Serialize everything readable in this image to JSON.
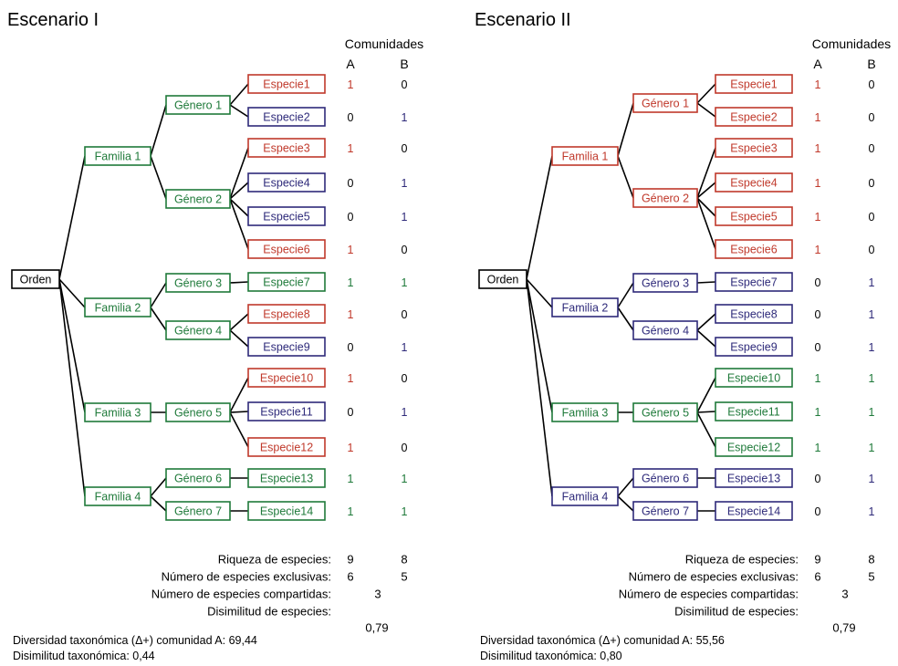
{
  "colors": {
    "red": "#c0392b",
    "blue": "#2e2a7a",
    "green": "#1f7a3a",
    "black": "#000000"
  },
  "header": {
    "comunidades": "Comunidades",
    "col_a": "A",
    "col_b": "B"
  },
  "stat_labels": {
    "riqueza": "Riqueza de especies:",
    "exclusivas": "Número de especies exclusivas:",
    "compartidas": "Número de especies compartidas:",
    "disimilitud": "Disimilitud de especies:"
  },
  "scenarios": [
    {
      "title": "Escenario I",
      "root": {
        "label": "Orden",
        "color": "black"
      },
      "families": [
        {
          "label": "Familia 1",
          "color": "green"
        },
        {
          "label": "Familia 2",
          "color": "green"
        },
        {
          "label": "Familia 3",
          "color": "green"
        },
        {
          "label": "Familia 4",
          "color": "green"
        }
      ],
      "genera": [
        {
          "label": "Género 1",
          "color": "green"
        },
        {
          "label": "Género 2",
          "color": "green"
        },
        {
          "label": "Género 3",
          "color": "green"
        },
        {
          "label": "Género 4",
          "color": "green"
        },
        {
          "label": "Género 5",
          "color": "green"
        },
        {
          "label": "Género 6",
          "color": "green"
        },
        {
          "label": "Género 7",
          "color": "green"
        }
      ],
      "species": [
        {
          "label": "Especie1",
          "color": "red",
          "a": "1",
          "b": "0"
        },
        {
          "label": "Especie2",
          "color": "blue",
          "a": "0",
          "b": "1"
        },
        {
          "label": "Especie3",
          "color": "red",
          "a": "1",
          "b": "0"
        },
        {
          "label": "Especie4",
          "color": "blue",
          "a": "0",
          "b": "1"
        },
        {
          "label": "Especie5",
          "color": "blue",
          "a": "0",
          "b": "1"
        },
        {
          "label": "Especie6",
          "color": "red",
          "a": "1",
          "b": "0"
        },
        {
          "label": "Especie7",
          "color": "green",
          "a": "1",
          "b": "1"
        },
        {
          "label": "Especie8",
          "color": "red",
          "a": "1",
          "b": "0"
        },
        {
          "label": "Especie9",
          "color": "blue",
          "a": "0",
          "b": "1"
        },
        {
          "label": "Especie10",
          "color": "red",
          "a": "1",
          "b": "0"
        },
        {
          "label": "Especie11",
          "color": "blue",
          "a": "0",
          "b": "1"
        },
        {
          "label": "Especie12",
          "color": "red",
          "a": "1",
          "b": "0"
        },
        {
          "label": "Especie13",
          "color": "green",
          "a": "1",
          "b": "1"
        },
        {
          "label": "Especie14",
          "color": "green",
          "a": "1",
          "b": "1"
        }
      ],
      "stats": {
        "riqueza_a": "9",
        "riqueza_b": "8",
        "exclusivas_a": "6",
        "exclusivas_b": "5",
        "compartidas": "3",
        "disimilitud": "0,79"
      },
      "footer": {
        "diversidad": "Diversidad taxonómica (Δ+) comunidad A: 69,44",
        "disimilitud_tax": "Disimilitud taxonómica: 0,44"
      }
    },
    {
      "title": "Escenario II",
      "root": {
        "label": "Orden",
        "color": "black"
      },
      "families": [
        {
          "label": "Familia 1",
          "color": "red"
        },
        {
          "label": "Familia 2",
          "color": "blue"
        },
        {
          "label": "Familia 3",
          "color": "green"
        },
        {
          "label": "Familia 4",
          "color": "blue"
        }
      ],
      "genera": [
        {
          "label": "Género 1",
          "color": "red"
        },
        {
          "label": "Género 2",
          "color": "red"
        },
        {
          "label": "Género 3",
          "color": "blue"
        },
        {
          "label": "Género 4",
          "color": "blue"
        },
        {
          "label": "Género 5",
          "color": "green"
        },
        {
          "label": "Género 6",
          "color": "blue"
        },
        {
          "label": "Género 7",
          "color": "blue"
        }
      ],
      "species": [
        {
          "label": "Especie1",
          "color": "red",
          "a": "1",
          "b": "0"
        },
        {
          "label": "Especie2",
          "color": "red",
          "a": "1",
          "b": "0"
        },
        {
          "label": "Especie3",
          "color": "red",
          "a": "1",
          "b": "0"
        },
        {
          "label": "Especie4",
          "color": "red",
          "a": "1",
          "b": "0"
        },
        {
          "label": "Especie5",
          "color": "red",
          "a": "1",
          "b": "0"
        },
        {
          "label": "Especie6",
          "color": "red",
          "a": "1",
          "b": "0"
        },
        {
          "label": "Especie7",
          "color": "blue",
          "a": "0",
          "b": "1"
        },
        {
          "label": "Especie8",
          "color": "blue",
          "a": "0",
          "b": "1"
        },
        {
          "label": "Especie9",
          "color": "blue",
          "a": "0",
          "b": "1"
        },
        {
          "label": "Especie10",
          "color": "green",
          "a": "1",
          "b": "1"
        },
        {
          "label": "Especie11",
          "color": "green",
          "a": "1",
          "b": "1"
        },
        {
          "label": "Especie12",
          "color": "green",
          "a": "1",
          "b": "1"
        },
        {
          "label": "Especie13",
          "color": "blue",
          "a": "0",
          "b": "1"
        },
        {
          "label": "Especie14",
          "color": "blue",
          "a": "0",
          "b": "1"
        }
      ],
      "stats": {
        "riqueza_a": "9",
        "riqueza_b": "8",
        "exclusivas_a": "6",
        "exclusivas_b": "5",
        "compartidas": "3",
        "disimilitud": "0,79"
      },
      "footer": {
        "diversidad": "Diversidad taxonómica (Δ+) comunidad A: 55,56",
        "disimilitud_tax": "Disimilitud taxonómica: 0,80"
      }
    }
  ]
}
